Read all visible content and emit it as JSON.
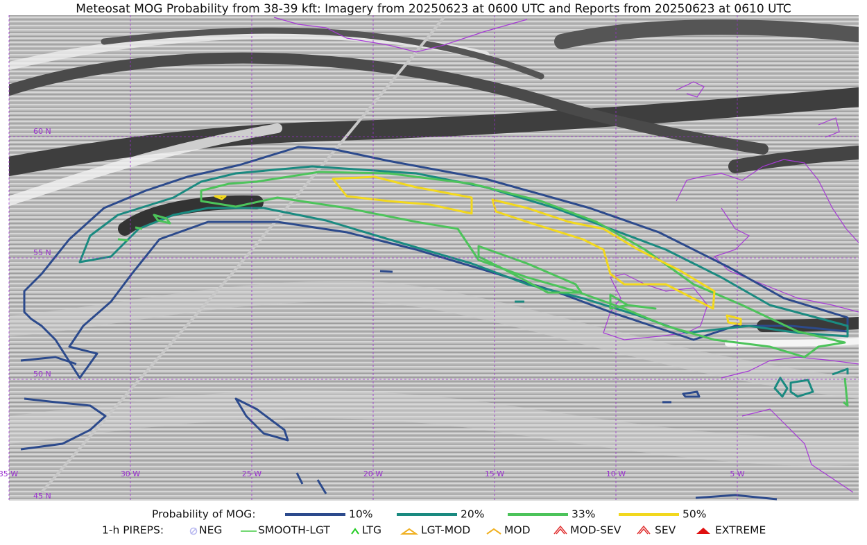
{
  "title": "Meteosat MOG Probability from 38-39 kft: Imagery from 20250623 at 0600 UTC and Reports from 20250623 at 0610 UTC",
  "map": {
    "lon_labels": [
      "35 W",
      "30 W",
      "25 W",
      "20 W",
      "15 W",
      "10 W",
      "5 W"
    ],
    "lat_labels": [
      "60 N",
      "55 N",
      "50 N",
      "45 N"
    ]
  },
  "legend": {
    "probability": {
      "title": "Probability of MOG:",
      "levels": [
        "10%",
        "20%",
        "33%",
        "50%"
      ]
    },
    "pireps": {
      "title": "1-h PIREPS:",
      "types": [
        "NEG",
        "SMOOTH-LGT",
        "LTG",
        "LGT-MOD",
        "MOD",
        "MOD-SEV",
        "SEV",
        "EXTREME"
      ]
    }
  }
}
